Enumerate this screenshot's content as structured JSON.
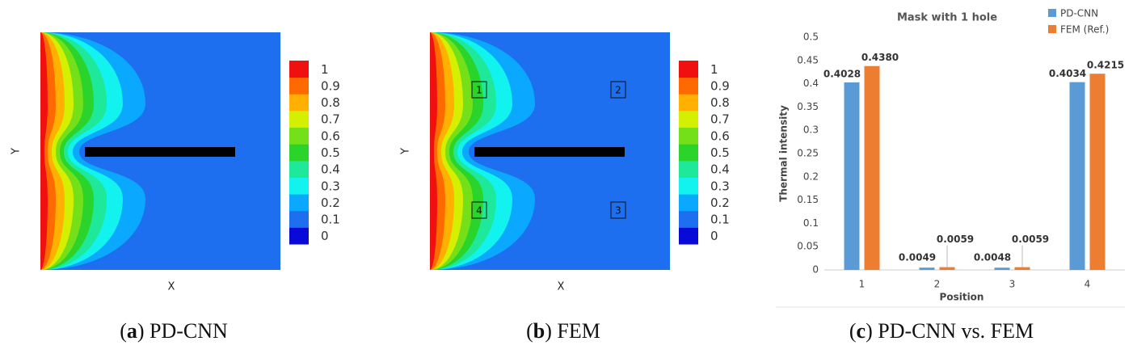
{
  "panels": [
    {
      "caption": [
        "(",
        "a",
        ") PD-CNN"
      ],
      "x_label": "X",
      "y_label": "Y",
      "colorbar": {
        "ticks": [
          0,
          0.1,
          0.2,
          0.3,
          0.4,
          0.5,
          0.6,
          0.7,
          0.8,
          0.9,
          1
        ],
        "colors": [
          "#0a0ad8",
          "#1e6ef0",
          "#0aa8ff",
          "#12f2ee",
          "#1ee89a",
          "#2ad42a",
          "#74e01a",
          "#d4f000",
          "#ffb000",
          "#ff6a00",
          "#f01010"
        ]
      }
    },
    {
      "caption": [
        "(",
        "b",
        ") FEM"
      ],
      "x_label": "X",
      "y_label": "Y",
      "colorbar": {
        "ticks": [
          0,
          0.1,
          0.2,
          0.3,
          0.4,
          0.5,
          0.6,
          0.7,
          0.8,
          0.9,
          1
        ],
        "colors": [
          "#0a0ad8",
          "#1e6ef0",
          "#0aa8ff",
          "#12f2ee",
          "#1ee89a",
          "#2ad42a",
          "#74e01a",
          "#d4f000",
          "#ffb000",
          "#ff6a00",
          "#f01010"
        ]
      },
      "probe_labels": [
        "1",
        "2",
        "3",
        "4"
      ]
    }
  ],
  "chart_data": {
    "type": "bar",
    "title": "Mask with 1 hole",
    "caption": [
      "(",
      "c",
      ") PD-CNN vs. FEM"
    ],
    "x_label": "Position",
    "y_label": "Thermal intensity",
    "categories": [
      "1",
      "2",
      "3",
      "4"
    ],
    "series": [
      {
        "name": "PD-CNN",
        "color": "#5b9bd5",
        "values": [
          0.4028,
          0.0049,
          0.0048,
          0.4034
        ],
        "value_labels": [
          "0.4028",
          "0.0049",
          "0.0048",
          "0.4034"
        ]
      },
      {
        "name": "FEM (Ref.)",
        "color": "#ed7d31",
        "values": [
          0.438,
          0.0059,
          0.0059,
          0.4215
        ],
        "value_labels": [
          "0.4380",
          "0.0059",
          "0.0059",
          "0.4215"
        ]
      }
    ],
    "ylim": [
      0,
      0.5
    ],
    "yticks": [
      0,
      0.05,
      0.1,
      0.15,
      0.2,
      0.25,
      0.3,
      0.35,
      0.4,
      0.45,
      0.5
    ],
    "legend": "top-right",
    "grid": false
  }
}
